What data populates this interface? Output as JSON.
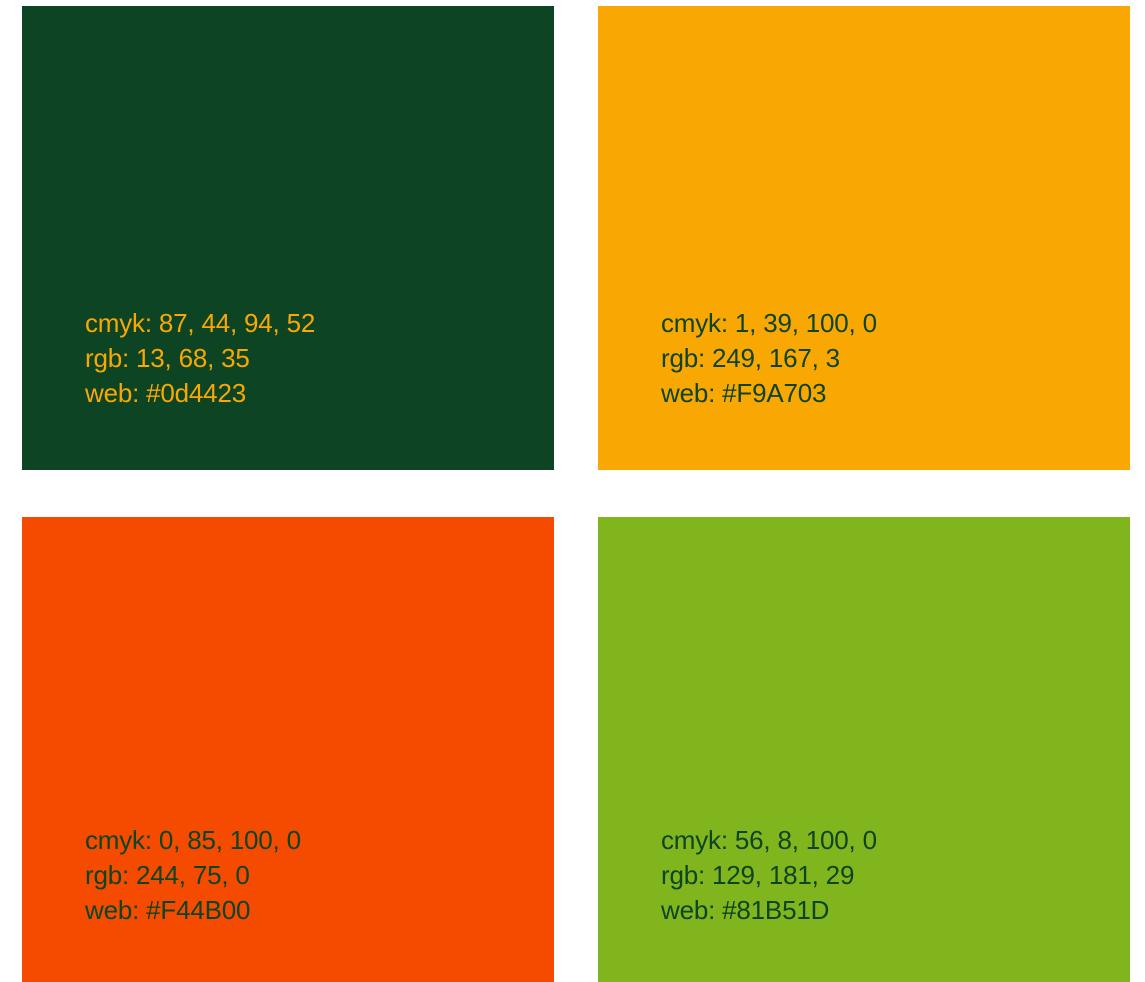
{
  "swatches": [
    {
      "color": "#0d4423",
      "text_color": "#F9A703",
      "cmyk": "cmyk: 87, 44, 94, 52",
      "rgb": "rgb: 13, 68, 35",
      "web": "web: #0d4423"
    },
    {
      "color": "#F9A703",
      "text_color": "#0d4423",
      "cmyk": "cmyk: 1, 39, 100, 0",
      "rgb": "rgb: 249, 167, 3",
      "web": "web: #F9A703"
    },
    {
      "color": "#F44B00",
      "text_color": "#0d4423",
      "cmyk": "cmyk: 0, 85, 100, 0",
      "rgb": "rgb: 244, 75, 0",
      "web": "web: #F44B00"
    },
    {
      "color": "#81B51D",
      "text_color": "#0d4423",
      "cmyk": "cmyk: 56, 8, 100, 0",
      "rgb": "rgb: 129, 181, 29",
      "web": "web: #81B51D"
    }
  ]
}
